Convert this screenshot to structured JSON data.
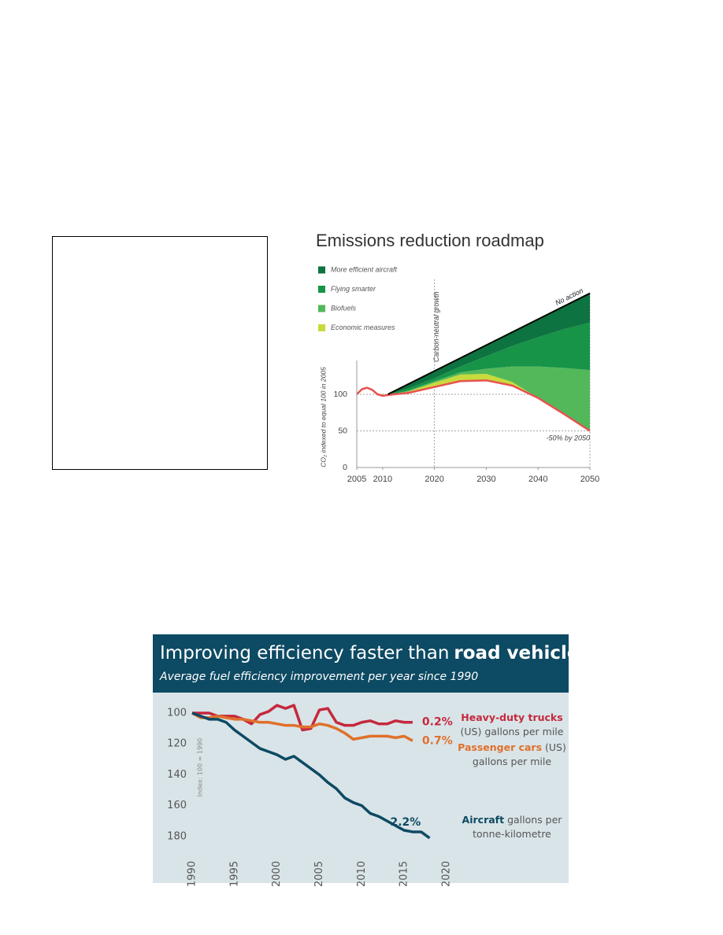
{
  "chart_data": [
    {
      "type": "area",
      "title": "Emissions reduction roadmap",
      "y_label": "CO₂ indexed to equal 100 in 2005",
      "stacked": true,
      "xlim": [
        2005,
        2050
      ],
      "xticks": [
        2005,
        2010,
        2020,
        2030,
        2040,
        2050
      ],
      "ylim": [
        0,
        250
      ],
      "yticks": [
        0,
        50,
        100
      ],
      "x": [
        2011,
        2015,
        2020,
        2025,
        2030,
        2035,
        2040,
        2045,
        2050
      ],
      "series": [
        {
          "name": "More efficient aircraft",
          "color": "#0d7340",
          "values": [
            0,
            6,
            10,
            12,
            15,
            19,
            25,
            31,
            40
          ]
        },
        {
          "name": "Flying smarter",
          "color": "#179447",
          "values": [
            1,
            3,
            4,
            8,
            17,
            28,
            40,
            53,
            65
          ]
        },
        {
          "name": "Biofuels",
          "color": "#52b85a",
          "values": [
            0,
            1,
            2,
            3,
            7,
            21,
            43,
            63,
            83
          ]
        },
        {
          "name": "Economic measures",
          "color": "#c8da3c",
          "values": [
            0,
            2,
            6,
            9,
            9,
            5,
            0,
            0,
            0
          ]
        }
      ],
      "net": {
        "label": "-50% by 2050",
        "color": "#e8524f",
        "x": [
          2005,
          2006,
          2007,
          2008,
          2009,
          2010,
          2011,
          2015,
          2020,
          2025,
          2030,
          2035,
          2040,
          2045,
          2050
        ],
        "values": [
          100,
          107,
          109,
          106,
          100,
          98,
          99,
          102,
          110,
          118,
          119,
          112,
          95,
          73,
          50
        ]
      },
      "baseline": {
        "label": "No action",
        "color": "#000000",
        "x": [
          2011,
          2050
        ],
        "values": [
          100,
          238
        ]
      },
      "marker": {
        "label": "Carbon-neutral growth",
        "x": 2020
      }
    },
    {
      "type": "line",
      "title": "Improving efficiency faster than",
      "title_emphasis": "road vehicles",
      "subtitle": "Average fuel efficiency improvement per year since 1990",
      "y_label": "Index: 100 = 1990",
      "y_inverted": true,
      "xlim": [
        1990,
        2020
      ],
      "xticks": [
        1990,
        1995,
        2000,
        2005,
        2010,
        2015,
        2020
      ],
      "ylim": [
        92,
        186
      ],
      "yticks": [
        100,
        120,
        140,
        160,
        180
      ],
      "x": [
        1990,
        1991,
        1992,
        1993,
        1994,
        1995,
        1996,
        1997,
        1998,
        1999,
        2000,
        2001,
        2002,
        2003,
        2004,
        2005,
        2006,
        2007,
        2008,
        2009,
        2010,
        2011,
        2012,
        2013,
        2014,
        2015,
        2016,
        2017,
        2018
      ],
      "series": [
        {
          "name": "Heavy-duty trucks",
          "unit": "(US) gallons per mile",
          "rate": "0.2%",
          "color": "#c5283d",
          "values": [
            100,
            100,
            100,
            102,
            102,
            102,
            104,
            107,
            101,
            99,
            95,
            97,
            95,
            111,
            110,
            98,
            97,
            106,
            108,
            108,
            106,
            105,
            107,
            107,
            105,
            106,
            106,
            null,
            null
          ]
        },
        {
          "name": "Passenger cars",
          "unit": "(US) gallons per mile",
          "rate": "0.7%",
          "color": "#e0702a",
          "values": [
            100,
            103,
            103,
            102,
            103,
            104,
            104,
            105,
            106,
            106,
            107,
            108,
            108,
            109,
            109,
            107,
            108,
            110,
            113,
            117,
            116,
            115,
            115,
            115,
            116,
            115,
            118,
            null,
            null
          ]
        },
        {
          "name": "Aircraft",
          "unit": "gallons per tonne-kilometre",
          "rate": "2.2%",
          "color": "#0d4a63",
          "values": [
            100,
            102,
            104,
            104,
            106,
            111,
            115,
            119,
            123,
            125,
            127,
            130,
            128,
            132,
            136,
            140,
            145,
            149,
            155,
            158,
            160,
            165,
            167,
            170,
            173,
            176,
            177,
            177,
            181
          ]
        }
      ]
    }
  ]
}
